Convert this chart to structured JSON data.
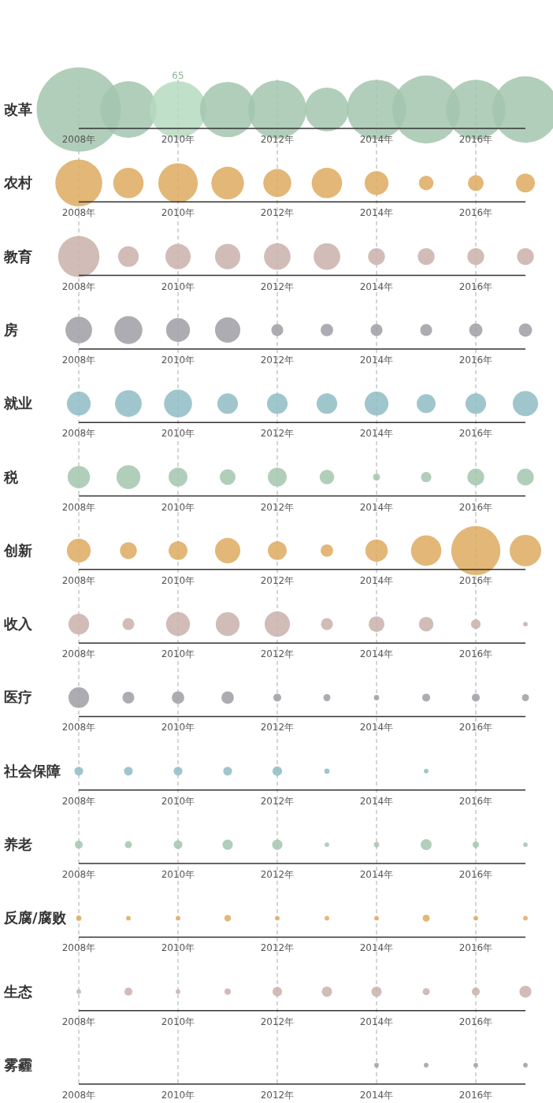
{
  "chart_data": {
    "type": "bubble",
    "orientation": "horizontal",
    "categories": [
      "改革",
      "农村",
      "教育",
      "房",
      "就业",
      "税",
      "创新",
      "收入",
      "医疗",
      "社会保障",
      "养老",
      "反腐/腐败",
      "生态",
      "雾霾"
    ],
    "xlim": [
      2008,
      2017
    ],
    "xticks": [
      {
        "value": 2008,
        "label": "2008年"
      },
      {
        "value": 2010,
        "label": "2010年"
      },
      {
        "value": 2012,
        "label": "2012年"
      },
      {
        "value": 2014,
        "label": "2014年"
      },
      {
        "value": 2016,
        "label": "2016年"
      }
    ],
    "grid": "x",
    "series": [
      {
        "colors": [
          "#a3c6ae",
          "#ddaa60",
          "#c9b0ab",
          "#9e9ea4",
          "#8fbcc4",
          "#a3c6ae",
          "#ddaa60",
          "#c9b0ab",
          "#9e9ea4",
          "#8fbcc4",
          "#a3c6ae",
          "#ddaa60",
          "#c9b0ab",
          null
        ],
        "values": [
          2008,
          2008,
          2008,
          2008,
          2008,
          2008,
          2008,
          2008,
          2008,
          2008,
          2008,
          2008,
          2008,
          null
        ],
        "sizes": [
          1,
          0.31,
          0.24,
          0.1,
          0.08,
          0.07,
          0.08,
          0.06,
          0.06,
          0.011,
          0.009,
          0.004,
          0.003,
          null
        ]
      },
      {
        "colors": [
          "#a3c6ae",
          "#ddaa60",
          "#c9b0ab",
          "#9e9ea4",
          "#8fbcc4",
          "#a3c6ae",
          "#ddaa60",
          "#c9b0ab",
          "#9e9ea4",
          "#8fbcc4",
          "#a3c6ae",
          "#ddaa60",
          "#c9b0ab",
          null
        ],
        "values": [
          2009,
          2009,
          2009,
          2009,
          2009,
          2009,
          2009,
          2009,
          2009,
          2009,
          2009,
          2009,
          2009,
          null
        ],
        "sizes": [
          0.45,
          0.13,
          0.06,
          0.11,
          0.1,
          0.08,
          0.04,
          0.02,
          0.02,
          0.011,
          0.007,
          0.003,
          0.009,
          null
        ]
      },
      {
        "colors": [
          "#b5dbc0",
          "#ddaa60",
          "#c9b0ab",
          "#9e9ea4",
          "#8fbcc4",
          "#a3c6ae",
          "#ddaa60",
          "#c9b0ab",
          "#9e9ea4",
          "#8fbcc4",
          "#a3c6ae",
          "#ddaa60",
          "#c9b0ab",
          null
        ],
        "values": [
          2010,
          2010,
          2010,
          2010,
          2010,
          2010,
          2010,
          2010,
          2010,
          2010,
          2010,
          2010,
          2010,
          null
        ],
        "sizes": [
          0.45,
          0.22,
          0.09,
          0.08,
          0.11,
          0.05,
          0.05,
          0.08,
          0.022,
          0.011,
          0.011,
          0.003,
          0.003,
          null
        ]
      },
      {
        "colors": [
          "#a3c6ae",
          "#ddaa60",
          "#c9b0ab",
          "#9e9ea4",
          "#8fbcc4",
          "#a3c6ae",
          "#ddaa60",
          "#c9b0ab",
          "#9e9ea4",
          "#8fbcc4",
          "#a3c6ae",
          "#ddaa60",
          "#c9b0ab",
          null
        ],
        "values": [
          2011,
          2011,
          2011,
          2011,
          2011,
          2011,
          2011,
          2011,
          2011,
          2011,
          2011,
          2011,
          2011,
          null
        ],
        "sizes": [
          0.43,
          0.15,
          0.09,
          0.09,
          0.06,
          0.035,
          0.09,
          0.08,
          0.022,
          0.011,
          0.015,
          0.006,
          0.006,
          null
        ]
      },
      {
        "colors": [
          "#a3c6ae",
          "#ddaa60",
          "#c9b0ab",
          "#9e9ea4",
          "#8fbcc4",
          "#a3c6ae",
          "#ddaa60",
          "#c9b0ab",
          "#9e9ea4",
          "#8fbcc4",
          "#a3c6ae",
          "#ddaa60",
          "#c9b0ab",
          null
        ],
        "values": [
          2012,
          2012,
          2012,
          2012,
          2012,
          2012,
          2012,
          2012,
          2012,
          2012,
          2012,
          2012,
          2012,
          null
        ],
        "sizes": [
          0.48,
          0.11,
          0.1,
          0.02,
          0.06,
          0.05,
          0.05,
          0.09,
          0.009,
          0.013,
          0.015,
          0.003,
          0.013,
          null
        ]
      },
      {
        "colors": [
          "#a3c6ae",
          "#ddaa60",
          "#c9b0ab",
          "#9e9ea4",
          "#8fbcc4",
          "#a3c6ae",
          "#ddaa60",
          "#c9b0ab",
          "#9e9ea4",
          "#8fbcc4",
          "#a3c6ae",
          "#ddaa60",
          "#c9b0ab",
          null
        ],
        "values": [
          2013,
          2013,
          2013,
          2013,
          2013,
          2013,
          2013,
          2013,
          2013,
          2013,
          2013,
          2013,
          2013,
          null
        ],
        "sizes": [
          0.27,
          0.13,
          0.1,
          0.022,
          0.06,
          0.03,
          0.022,
          0.02,
          0.007,
          0.004,
          0.003,
          0.003,
          0.015,
          null
        ]
      },
      {
        "colors": [
          "#a3c6ae",
          "#ddaa60",
          "#c9b0ab",
          "#9e9ea4",
          "#8fbcc4",
          "#a3c6ae",
          "#ddaa60",
          "#c9b0ab",
          "#9e9ea4",
          null,
          "#a3c6ae",
          "#ddaa60",
          "#c9b0ab",
          "#9e9ea4"
        ],
        "values": [
          2014,
          2014,
          2014,
          2014,
          2014,
          2014,
          2014,
          2014,
          2014,
          null,
          2014,
          2014,
          2014,
          2014
        ],
        "sizes": [
          0.5,
          0.08,
          0.04,
          0.02,
          0.08,
          0.007,
          0.07,
          0.035,
          0.004,
          null,
          0.004,
          0.003,
          0.015,
          0.003
        ]
      },
      {
        "colors": [
          "#a3c6ae",
          "#ddaa60",
          "#c9b0ab",
          "#9e9ea4",
          "#8fbcc4",
          "#a3c6ae",
          "#ddaa60",
          "#c9b0ab",
          "#9e9ea4",
          "#8fbcc4",
          "#a3c6ae",
          "#ddaa60",
          "#c9b0ab",
          "#9e9ea4"
        ],
        "values": [
          2015,
          2015,
          2015,
          2015,
          2015,
          2015,
          2015,
          2015,
          2015,
          2015,
          2015,
          2015,
          2015,
          2015
        ],
        "sizes": [
          0.65,
          0.03,
          0.04,
          0.02,
          0.05,
          0.015,
          0.13,
          0.03,
          0.009,
          0.003,
          0.017,
          0.007,
          0.007,
          0.003
        ]
      },
      {
        "colors": [
          "#a3c6ae",
          "#ddaa60",
          "#c9b0ab",
          "#9e9ea4",
          "#8fbcc4",
          "#a3c6ae",
          "#ddaa60",
          "#c9b0ab",
          "#9e9ea4",
          null,
          "#a3c6ae",
          "#ddaa60",
          "#c9b0ab",
          "#9e9ea4"
        ],
        "values": [
          2016,
          2016,
          2016,
          2016,
          2016,
          2016,
          2016,
          2016,
          2016,
          null,
          2016,
          2016,
          2016,
          2016
        ],
        "sizes": [
          0.5,
          0.035,
          0.04,
          0.025,
          0.06,
          0.04,
          0.34,
          0.013,
          0.009,
          null,
          0.006,
          0.003,
          0.009,
          0.003
        ]
      },
      {
        "colors": [
          "#a3c6ae",
          "#ddaa60",
          "#c9b0ab",
          "#9e9ea4",
          "#8fbcc4",
          "#a3c6ae",
          "#ddaa60",
          "#c9b0ab",
          "#9e9ea4",
          null,
          "#a3c6ae",
          "#ddaa60",
          "#c9b0ab",
          "#9e9ea4"
        ],
        "values": [
          2017,
          2017,
          2017,
          2017,
          2017,
          2017,
          2017,
          2017,
          2017,
          null,
          2017,
          2017,
          2017,
          2017
        ],
        "sizes": [
          0.62,
          0.05,
          0.04,
          0.025,
          0.09,
          0.04,
          0.14,
          0.003,
          0.007,
          null,
          0.003,
          0.003,
          0.02,
          0.003
        ]
      }
    ],
    "annotations": [
      "65"
    ]
  }
}
